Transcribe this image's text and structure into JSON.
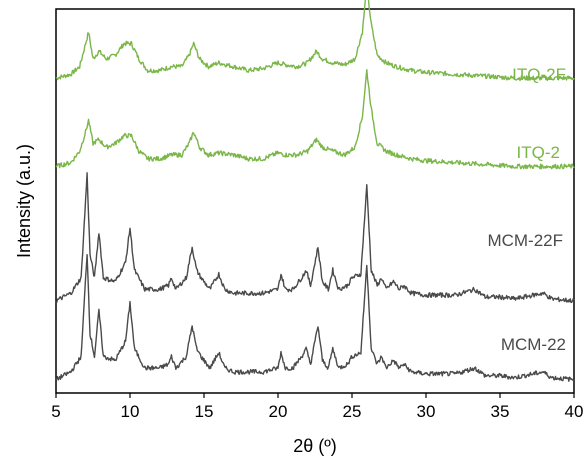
{
  "chart_data": {
    "type": "line",
    "title": "",
    "xlabel": "2θ (º)",
    "ylabel": "Intensity (a.u.)",
    "xlim": [
      5,
      40
    ],
    "x_ticks": [
      5,
      10,
      15,
      20,
      25,
      30,
      35,
      40
    ],
    "y_ticks": "none",
    "grid": false,
    "legend": "inline labels at right",
    "series": [
      {
        "name": "ITQ-2F",
        "color": "#7ab648",
        "baseline": 0.82,
        "points": [
          [
            5,
            0.0
          ],
          [
            6,
            0.01
          ],
          [
            6.6,
            0.03
          ],
          [
            7.0,
            0.09
          ],
          [
            7.2,
            0.12
          ],
          [
            7.5,
            0.05
          ],
          [
            7.9,
            0.07
          ],
          [
            8.4,
            0.05
          ],
          [
            9.0,
            0.06
          ],
          [
            9.6,
            0.09
          ],
          [
            10.1,
            0.09
          ],
          [
            10.6,
            0.05
          ],
          [
            11.2,
            0.02
          ],
          [
            12,
            0.02
          ],
          [
            12.8,
            0.03
          ],
          [
            13.5,
            0.03
          ],
          [
            14.0,
            0.06
          ],
          [
            14.3,
            0.09
          ],
          [
            14.7,
            0.05
          ],
          [
            15.3,
            0.03
          ],
          [
            16,
            0.04
          ],
          [
            17,
            0.03
          ],
          [
            18,
            0.02
          ],
          [
            19,
            0.025
          ],
          [
            20,
            0.04
          ],
          [
            20.5,
            0.035
          ],
          [
            21.3,
            0.03
          ],
          [
            22,
            0.04
          ],
          [
            22.6,
            0.07
          ],
          [
            23.0,
            0.05
          ],
          [
            23.7,
            0.04
          ],
          [
            24.5,
            0.035
          ],
          [
            25.2,
            0.05
          ],
          [
            25.7,
            0.12
          ],
          [
            26.0,
            0.24
          ],
          [
            26.3,
            0.14
          ],
          [
            26.7,
            0.06
          ],
          [
            27.3,
            0.04
          ],
          [
            28,
            0.03
          ],
          [
            29,
            0.02
          ],
          [
            30,
            0.015
          ],
          [
            32,
            0.01
          ],
          [
            34,
            0.005
          ],
          [
            36,
            0.0
          ],
          [
            38,
            0.0
          ],
          [
            40,
            0.0
          ]
        ]
      },
      {
        "name": "ITQ-2",
        "color": "#7ab648",
        "baseline": 0.59,
        "points": [
          [
            5,
            0.0
          ],
          [
            6,
            0.01
          ],
          [
            6.6,
            0.04
          ],
          [
            7.0,
            0.09
          ],
          [
            7.2,
            0.12
          ],
          [
            7.5,
            0.06
          ],
          [
            7.9,
            0.07
          ],
          [
            8.4,
            0.05
          ],
          [
            9.0,
            0.06
          ],
          [
            9.6,
            0.08
          ],
          [
            10.1,
            0.08
          ],
          [
            10.6,
            0.04
          ],
          [
            11.2,
            0.02
          ],
          [
            12,
            0.02
          ],
          [
            12.8,
            0.03
          ],
          [
            13.5,
            0.03
          ],
          [
            14.0,
            0.06
          ],
          [
            14.3,
            0.09
          ],
          [
            14.7,
            0.05
          ],
          [
            15.3,
            0.03
          ],
          [
            16,
            0.035
          ],
          [
            17,
            0.03
          ],
          [
            18,
            0.02
          ],
          [
            19,
            0.02
          ],
          [
            20,
            0.035
          ],
          [
            20.5,
            0.03
          ],
          [
            21.3,
            0.03
          ],
          [
            22,
            0.04
          ],
          [
            22.6,
            0.07
          ],
          [
            23.0,
            0.05
          ],
          [
            23.7,
            0.04
          ],
          [
            24.5,
            0.03
          ],
          [
            25.2,
            0.05
          ],
          [
            25.7,
            0.13
          ],
          [
            26.0,
            0.25
          ],
          [
            26.3,
            0.15
          ],
          [
            26.7,
            0.06
          ],
          [
            27.3,
            0.04
          ],
          [
            28,
            0.03
          ],
          [
            29,
            0.02
          ],
          [
            30,
            0.015
          ],
          [
            32,
            0.01
          ],
          [
            34,
            0.005
          ],
          [
            36,
            0.0
          ],
          [
            38,
            0.0
          ],
          [
            40,
            0.0
          ]
        ]
      },
      {
        "name": "MCM-22F",
        "color": "#4a4a4a",
        "baseline": 0.24,
        "points": [
          [
            5,
            0.0
          ],
          [
            6,
            0.02
          ],
          [
            6.7,
            0.06
          ],
          [
            7.1,
            0.33
          ],
          [
            7.3,
            0.12
          ],
          [
            7.6,
            0.06
          ],
          [
            7.9,
            0.18
          ],
          [
            8.2,
            0.06
          ],
          [
            9.0,
            0.05
          ],
          [
            9.7,
            0.1
          ],
          [
            10.0,
            0.19
          ],
          [
            10.3,
            0.08
          ],
          [
            11,
            0.03
          ],
          [
            12,
            0.03
          ],
          [
            12.6,
            0.04
          ],
          [
            12.8,
            0.06
          ],
          [
            13.1,
            0.03
          ],
          [
            13.8,
            0.06
          ],
          [
            14.2,
            0.14
          ],
          [
            14.5,
            0.08
          ],
          [
            14.8,
            0.06
          ],
          [
            15.4,
            0.03
          ],
          [
            16.0,
            0.07
          ],
          [
            16.4,
            0.03
          ],
          [
            17,
            0.02
          ],
          [
            18,
            0.02
          ],
          [
            19,
            0.02
          ],
          [
            20.0,
            0.03
          ],
          [
            20.2,
            0.07
          ],
          [
            20.5,
            0.03
          ],
          [
            21.0,
            0.03
          ],
          [
            21.6,
            0.06
          ],
          [
            21.9,
            0.08
          ],
          [
            22.2,
            0.04
          ],
          [
            22.7,
            0.14
          ],
          [
            23.0,
            0.05
          ],
          [
            23.4,
            0.03
          ],
          [
            23.7,
            0.08
          ],
          [
            24.1,
            0.03
          ],
          [
            24.7,
            0.04
          ],
          [
            25.0,
            0.06
          ],
          [
            25.6,
            0.07
          ],
          [
            26.0,
            0.3
          ],
          [
            26.3,
            0.08
          ],
          [
            26.7,
            0.04
          ],
          [
            27.0,
            0.06
          ],
          [
            27.3,
            0.03
          ],
          [
            27.8,
            0.05
          ],
          [
            28.2,
            0.03
          ],
          [
            28.5,
            0.04
          ],
          [
            29,
            0.02
          ],
          [
            30,
            0.015
          ],
          [
            31,
            0.015
          ],
          [
            32,
            0.015
          ],
          [
            33.3,
            0.03
          ],
          [
            34,
            0.01
          ],
          [
            35,
            0.01
          ],
          [
            36,
            0.005
          ],
          [
            37.9,
            0.02
          ],
          [
            38.5,
            0.005
          ],
          [
            40,
            0.0
          ]
        ]
      },
      {
        "name": "MCM-22",
        "color": "#4a4a4a",
        "baseline": 0.035,
        "points": [
          [
            5,
            0.0
          ],
          [
            6,
            0.02
          ],
          [
            6.7,
            0.06
          ],
          [
            7.1,
            0.33
          ],
          [
            7.3,
            0.12
          ],
          [
            7.6,
            0.06
          ],
          [
            7.9,
            0.18
          ],
          [
            8.2,
            0.06
          ],
          [
            9.0,
            0.05
          ],
          [
            9.7,
            0.1
          ],
          [
            10.0,
            0.2
          ],
          [
            10.3,
            0.08
          ],
          [
            11,
            0.03
          ],
          [
            12,
            0.03
          ],
          [
            12.6,
            0.04
          ],
          [
            12.8,
            0.06
          ],
          [
            13.1,
            0.03
          ],
          [
            13.8,
            0.06
          ],
          [
            14.2,
            0.14
          ],
          [
            14.5,
            0.08
          ],
          [
            14.8,
            0.06
          ],
          [
            15.4,
            0.03
          ],
          [
            16.0,
            0.07
          ],
          [
            16.4,
            0.03
          ],
          [
            17,
            0.02
          ],
          [
            18,
            0.02
          ],
          [
            19,
            0.02
          ],
          [
            20.0,
            0.03
          ],
          [
            20.2,
            0.07
          ],
          [
            20.5,
            0.03
          ],
          [
            21.0,
            0.03
          ],
          [
            21.6,
            0.06
          ],
          [
            21.9,
            0.08
          ],
          [
            22.2,
            0.04
          ],
          [
            22.7,
            0.14
          ],
          [
            23.0,
            0.05
          ],
          [
            23.4,
            0.03
          ],
          [
            23.7,
            0.08
          ],
          [
            24.1,
            0.03
          ],
          [
            24.7,
            0.04
          ],
          [
            25.0,
            0.06
          ],
          [
            25.6,
            0.07
          ],
          [
            26.0,
            0.3
          ],
          [
            26.3,
            0.08
          ],
          [
            26.7,
            0.04
          ],
          [
            27.0,
            0.06
          ],
          [
            27.3,
            0.03
          ],
          [
            27.8,
            0.05
          ],
          [
            28.2,
            0.03
          ],
          [
            28.5,
            0.04
          ],
          [
            29,
            0.02
          ],
          [
            30,
            0.015
          ],
          [
            31,
            0.015
          ],
          [
            32,
            0.015
          ],
          [
            33.3,
            0.03
          ],
          [
            34,
            0.01
          ],
          [
            35,
            0.01
          ],
          [
            36,
            0.005
          ],
          [
            37.9,
            0.02
          ],
          [
            38.5,
            0.005
          ],
          [
            40,
            0.0
          ]
        ]
      }
    ]
  }
}
